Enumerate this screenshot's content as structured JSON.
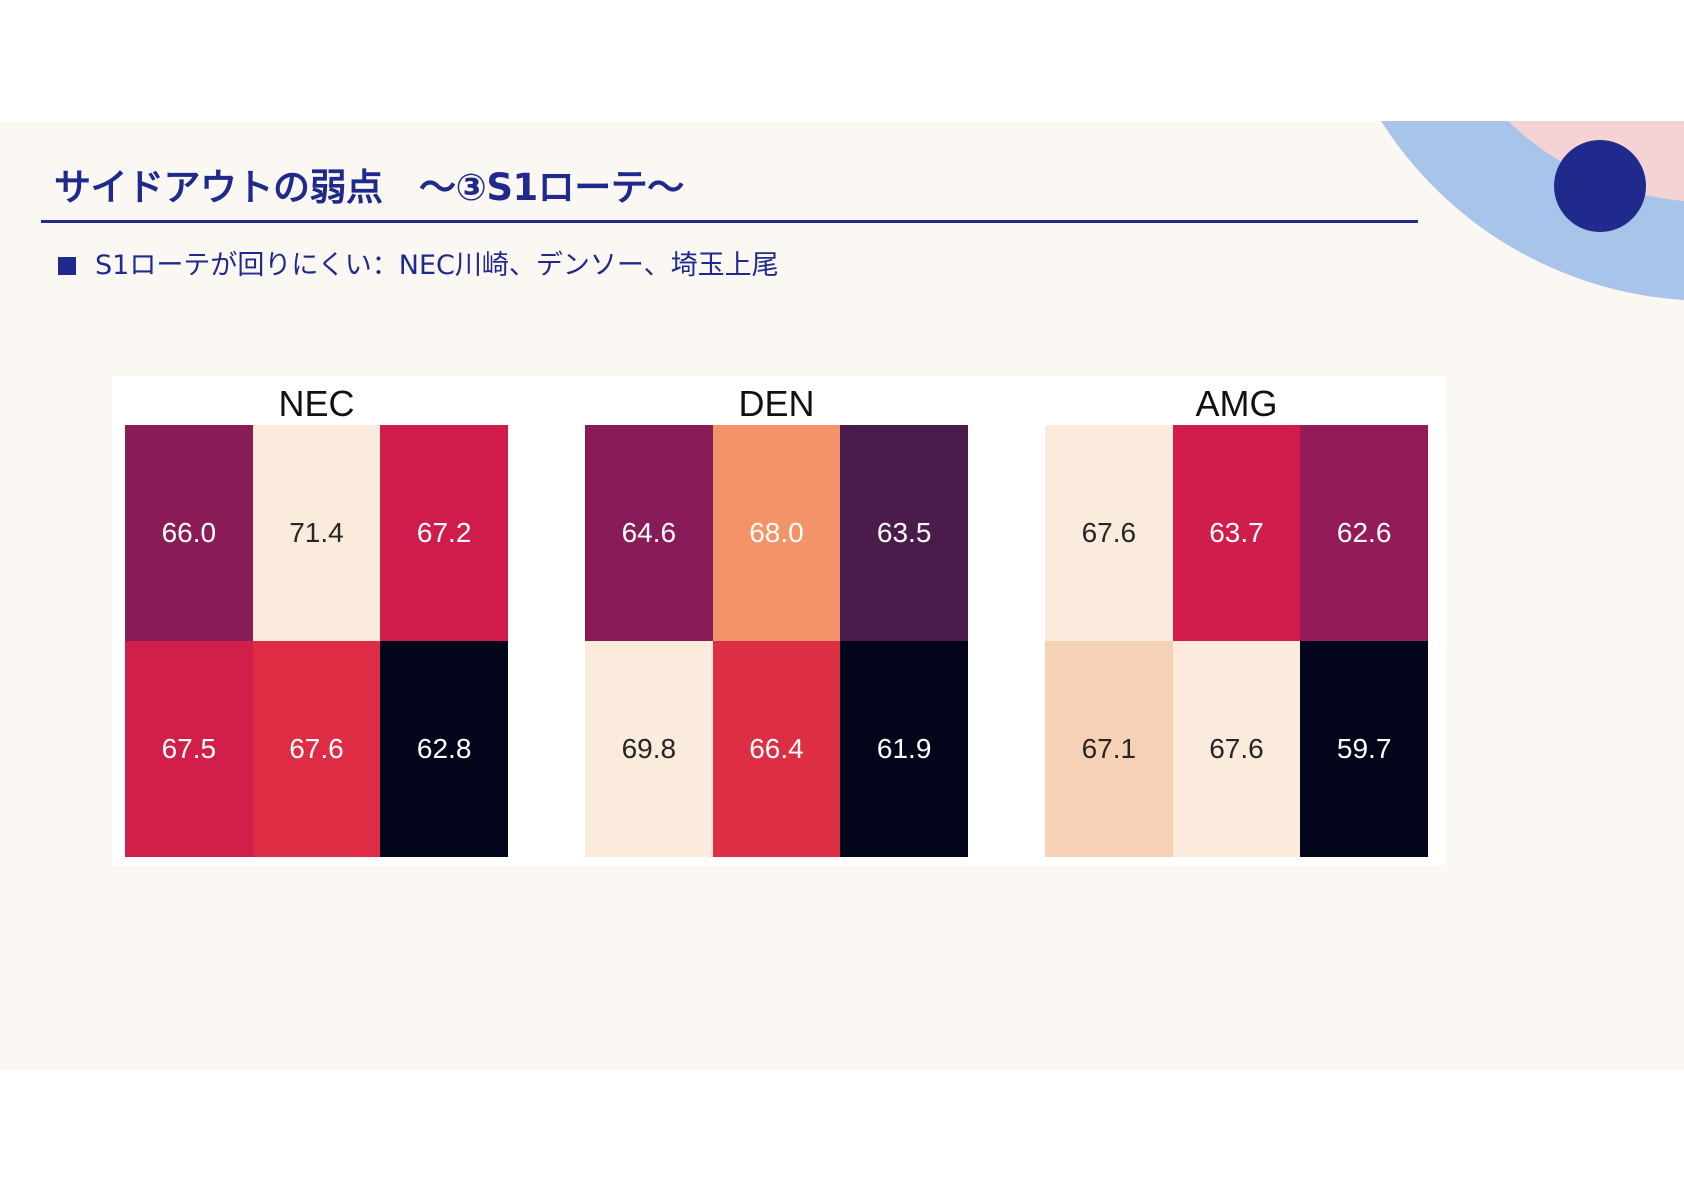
{
  "slide": {
    "title": "サイドアウトの弱点　～③S1ローテ～",
    "bullet": "S1ローテが回りにくい：NEC川崎、デンソー、埼玉上尾"
  },
  "theme": {
    "navy": "#1f2a8c",
    "slide_background": "#fbf8f3",
    "panel_background": "#ffffff",
    "deco_blue": "#a9c4eb",
    "deco_pink": "#f4d3d4"
  },
  "chart_data": [
    {
      "type": "heatmap",
      "title": "NEC",
      "values": [
        [
          66.0,
          71.4,
          67.2
        ],
        [
          67.5,
          67.6,
          62.8
        ]
      ],
      "colors": [
        [
          "#8a1d58",
          "#faebdd",
          "#cf1c4c"
        ],
        [
          "#d21f4a",
          "#dd2c44",
          "#03051a"
        ]
      ],
      "label_colors": [
        [
          "#ffffff",
          "#262626",
          "#ffffff"
        ],
        [
          "#ffffff",
          "#ffffff",
          "#ffffff"
        ]
      ]
    },
    {
      "type": "heatmap",
      "title": "DEN",
      "values": [
        [
          64.6,
          68.0,
          63.5
        ],
        [
          69.8,
          66.4,
          61.9
        ]
      ],
      "colors": [
        [
          "#891c58",
          "#f4926a",
          "#4b1c4b"
        ],
        [
          "#faebdd",
          "#de2e43",
          "#03051a"
        ]
      ],
      "label_colors": [
        [
          "#ffffff",
          "#ffffff",
          "#ffffff"
        ],
        [
          "#262626",
          "#ffffff",
          "#ffffff"
        ]
      ]
    },
    {
      "type": "heatmap",
      "title": "AMG",
      "values": [
        [
          67.6,
          63.7,
          62.6
        ],
        [
          67.1,
          67.6,
          59.7
        ]
      ],
      "colors": [
        [
          "#faebdd",
          "#d11d4b",
          "#931b57"
        ],
        [
          "#f6d1b6",
          "#faebdd",
          "#03051a"
        ]
      ],
      "label_colors": [
        [
          "#262626",
          "#ffffff",
          "#ffffff"
        ],
        [
          "#262626",
          "#262626",
          "#ffffff"
        ]
      ]
    }
  ]
}
